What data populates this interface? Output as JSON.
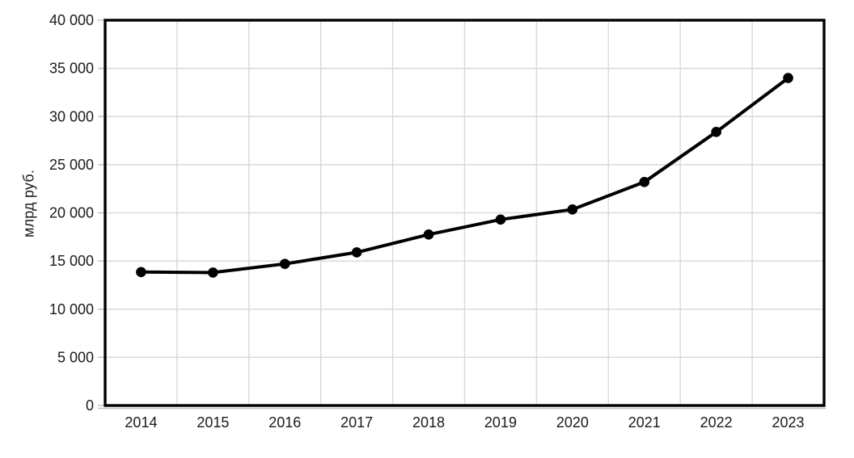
{
  "chart_data": {
    "type": "line",
    "title": "",
    "categories": [
      "2014",
      "2015",
      "2016",
      "2017",
      "2018",
      "2019",
      "2020",
      "2021",
      "2022",
      "2023"
    ],
    "series": [
      {
        "name": "млрд руб.",
        "values": [
          13850,
          13800,
          14700,
          15900,
          17750,
          19300,
          20350,
          23200,
          28400,
          34000
        ]
      }
    ],
    "xlabel": "",
    "ylabel": "млрд руб.",
    "ylim": [
      0,
      40000
    ],
    "ytick_values": [
      0,
      5000,
      10000,
      15000,
      20000,
      25000,
      30000,
      35000,
      40000
    ],
    "ytick_labels": [
      "0",
      "5 000",
      "10 000",
      "15 000",
      "20 000",
      "25 000",
      "30 000",
      "35 000",
      "40 000"
    ],
    "grid": "both",
    "legend_position": "none",
    "line_color": "#000000",
    "marker": "circle",
    "marker_color": "#000000"
  },
  "colors": {
    "background": "#ffffff",
    "plot_border": "#000000",
    "gridline": "#d9d9d9",
    "axis_line": "#bfbfbf",
    "tick_text": "#1a1a1a"
  }
}
